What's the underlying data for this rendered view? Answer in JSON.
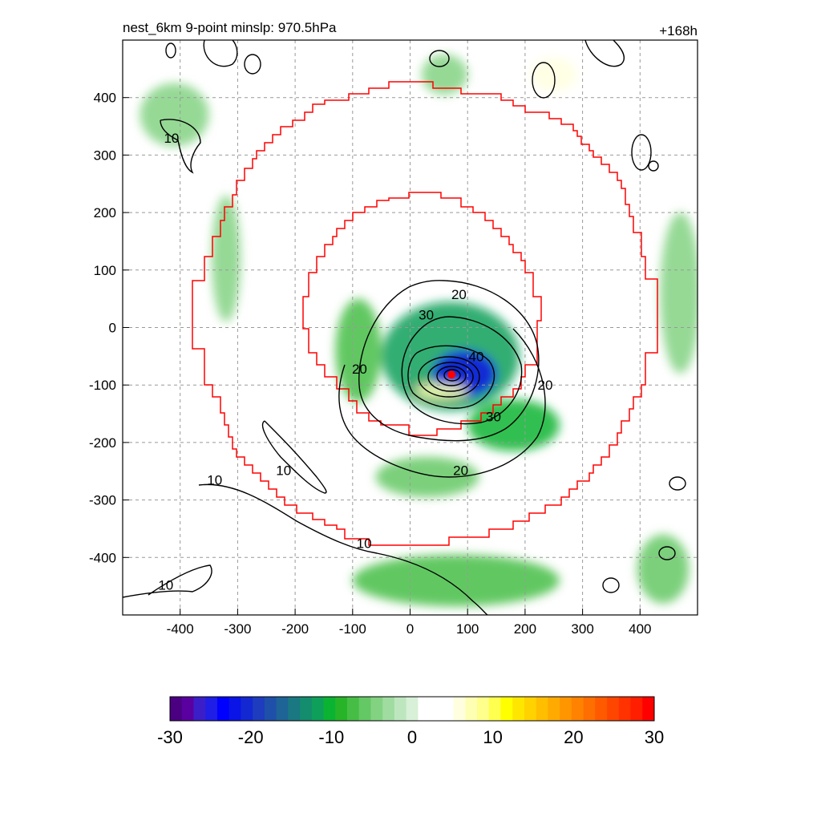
{
  "chart_data": [
    {
      "type": "heatmap",
      "title_left": "nest_6km  9-point minslp: 970.5hPa",
      "title_right": "+168h",
      "xlabel": "",
      "ylabel": "",
      "xlim": [
        -500,
        500
      ],
      "ylim": [
        -500,
        500
      ],
      "x_ticks": [
        -400,
        -300,
        -200,
        -100,
        0,
        100,
        200,
        300,
        400
      ],
      "y_ticks": [
        400,
        300,
        200,
        100,
        0,
        -100,
        -200,
        -300,
        -400
      ],
      "grid": true,
      "storm_center": {
        "x": 72,
        "y": -82
      },
      "contour_labels": [
        {
          "text": "20",
          "x": 85,
          "y": 58
        },
        {
          "text": "30",
          "x": 28,
          "y": 22
        },
        {
          "text": "40",
          "x": 115,
          "y": -50
        },
        {
          "text": "20",
          "x": -88,
          "y": -72
        },
        {
          "text": "20",
          "x": 235,
          "y": -100
        },
        {
          "text": "30",
          "x": 145,
          "y": -155
        },
        {
          "text": "20",
          "x": 88,
          "y": -248
        },
        {
          "text": "10",
          "x": -415,
          "y": 330
        },
        {
          "text": "10",
          "x": -220,
          "y": -248
        },
        {
          "text": "10",
          "x": -340,
          "y": -265
        },
        {
          "text": "10",
          "x": -80,
          "y": -375
        },
        {
          "text": "10",
          "x": -425,
          "y": -448
        }
      ],
      "field_blobs": [
        {
          "x": 70,
          "y": -50,
          "rx": 120,
          "ry": 95,
          "v": -12
        },
        {
          "x": 95,
          "y": -80,
          "rx": 55,
          "ry": 40,
          "v": -22
        },
        {
          "x": -90,
          "y": -40,
          "rx": 40,
          "ry": 90,
          "v": -8
        },
        {
          "x": 180,
          "y": -170,
          "rx": 80,
          "ry": 45,
          "v": -10
        },
        {
          "x": 30,
          "y": -260,
          "rx": 90,
          "ry": 35,
          "v": -6
        },
        {
          "x": 80,
          "y": -440,
          "rx": 180,
          "ry": 45,
          "v": -7
        },
        {
          "x": -410,
          "y": 370,
          "rx": 60,
          "ry": 55,
          "v": -5
        },
        {
          "x": -320,
          "y": 120,
          "rx": 25,
          "ry": 110,
          "v": -5
        },
        {
          "x": 470,
          "y": 60,
          "rx": 35,
          "ry": 140,
          "v": -4
        },
        {
          "x": 440,
          "y": -420,
          "rx": 45,
          "ry": 60,
          "v": -6
        },
        {
          "x": 60,
          "y": 440,
          "rx": 40,
          "ry": 35,
          "v": -5
        },
        {
          "x": 250,
          "y": 440,
          "rx": 40,
          "ry": 30,
          "v": 6
        },
        {
          "x": 55,
          "y": -110,
          "rx": 45,
          "ry": 14,
          "v": 8
        },
        {
          "x": 370,
          "y": 230,
          "rx": 30,
          "ry": 20,
          "v": 4
        },
        {
          "x": -440,
          "y": -460,
          "rx": 40,
          "ry": 18,
          "v": 5
        }
      ],
      "colorbar": {
        "min": -30,
        "max": 30,
        "tick_labels": [
          "-30",
          "-20",
          "-10",
          "0",
          "10",
          "20",
          "30"
        ],
        "colors": [
          "#4b0082",
          "#5a00a0",
          "#3c1ec8",
          "#1e1ee6",
          "#0000ff",
          "#0a14e6",
          "#1428d2",
          "#1e3cbe",
          "#1e50aa",
          "#1e6496",
          "#197882",
          "#148c6e",
          "#0ea05a",
          "#0ab432",
          "#28b428",
          "#46be46",
          "#64c864",
          "#82d282",
          "#a0dca0",
          "#bee6be",
          "#d7f0d7",
          "#ffffff",
          "#ffffff",
          "#ffffff",
          "#ffffe0",
          "#ffffb4",
          "#ffff8c",
          "#ffff50",
          "#ffff00",
          "#ffe600",
          "#ffd200",
          "#ffbe00",
          "#ffaa00",
          "#ff9600",
          "#ff8200",
          "#ff6e00",
          "#ff5a00",
          "#ff4600",
          "#ff3200",
          "#ff1e00",
          "#ff0000"
        ]
      }
    }
  ]
}
